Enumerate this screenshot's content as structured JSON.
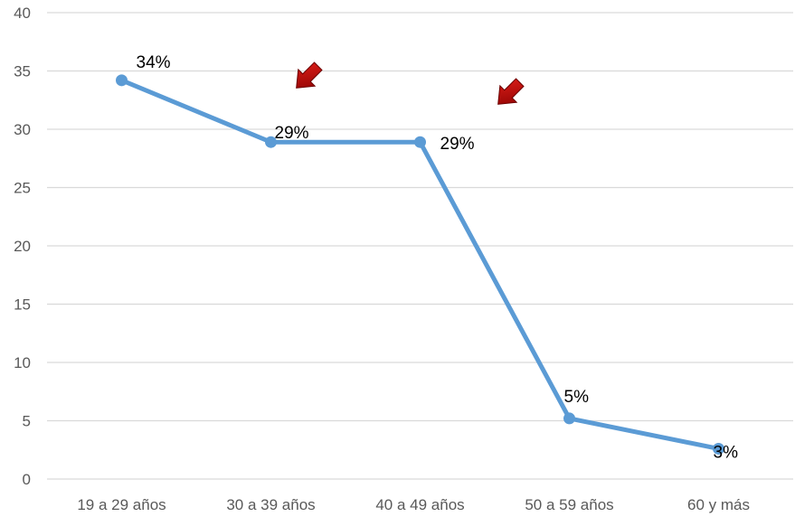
{
  "chart_data": {
    "type": "line",
    "categories": [
      "19 a 29 años",
      "30 a 39 años",
      "40 a 49 años",
      "50 a 59 años",
      "60 y más"
    ],
    "series": [
      {
        "values": [
          34.2,
          28.9,
          28.9,
          5.2,
          2.6
        ],
        "data_labels": [
          "34%",
          "29%",
          "29%",
          "5%",
          "3%"
        ],
        "color": "#5b9bd5"
      }
    ],
    "ylim": [
      0,
      40
    ],
    "y_ticks": [
      0,
      5,
      10,
      15,
      20,
      25,
      30,
      35,
      40
    ],
    "grid": true,
    "legend": "none",
    "annotations": [
      {
        "type": "arrow",
        "color": "#c00000",
        "points_to": "30 a 39 años"
      },
      {
        "type": "arrow",
        "color": "#c00000",
        "points_to": "40 a 49 años"
      }
    ],
    "title": "",
    "xlabel": "",
    "ylabel": ""
  }
}
